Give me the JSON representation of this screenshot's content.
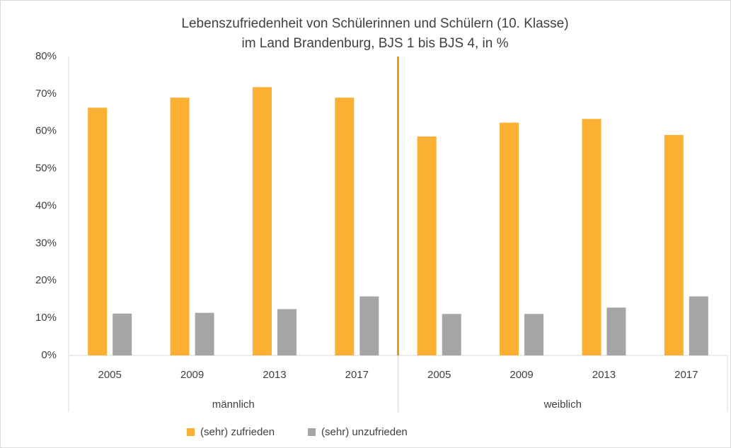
{
  "chart_data": {
    "type": "bar",
    "title": "Lebenszufriedenheit von Schülerinnen und Schülern (10. Klasse) im Land Brandenburg, BJS 1 bis BJS 4, in %",
    "categories": [
      "2005",
      "2009",
      "2013",
      "2017",
      "2005",
      "2009",
      "2013",
      "2017"
    ],
    "groups": [
      "männlich",
      "weiblich"
    ],
    "series": [
      {
        "name": "(sehr) zufrieden",
        "color": "#fbb034",
        "values": [
          66.3,
          69.0,
          71.8,
          69.0,
          58.6,
          62.3,
          63.3,
          59.0
        ]
      },
      {
        "name": "(sehr) unzufrieden",
        "color": "#a5a5a5",
        "values": [
          11.2,
          11.4,
          12.4,
          15.8,
          11.1,
          11.1,
          12.8,
          15.8
        ]
      }
    ],
    "ylim": [
      0,
      80
    ],
    "yticks": [
      {
        "value": 0,
        "label": "0%"
      },
      {
        "value": 10,
        "label": "10%"
      },
      {
        "value": 20,
        "label": "20%"
      },
      {
        "value": 30,
        "label": "30%"
      },
      {
        "value": 40,
        "label": "40%"
      },
      {
        "value": 50,
        "label": "50%"
      },
      {
        "value": 60,
        "label": "60%"
      },
      {
        "value": 70,
        "label": "70%"
      },
      {
        "value": 80,
        "label": "80%"
      }
    ],
    "grid": false,
    "legend": "bottom"
  }
}
